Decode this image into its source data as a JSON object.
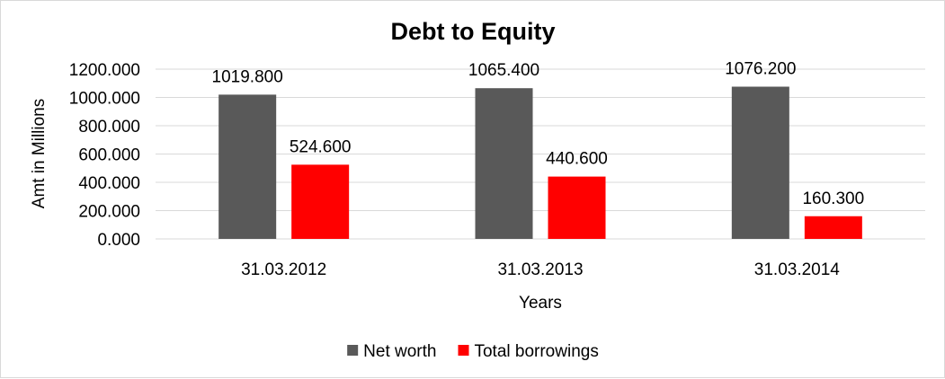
{
  "chart_data": {
    "type": "bar",
    "title": "Debt to Equity",
    "xlabel": "Years",
    "ylabel": "Amt in Millions",
    "categories": [
      "31.03.2012",
      "31.03.2013",
      "31.03.2014"
    ],
    "series": [
      {
        "name": "Net worth",
        "values": [
          1019.8,
          1065.4,
          1076.2
        ],
        "color": "#595959"
      },
      {
        "name": "Total borrowings",
        "values": [
          524.6,
          440.6,
          160.3
        ],
        "color": "#ff0000"
      }
    ],
    "ylim": [
      0,
      1200
    ],
    "yticks": [
      0,
      200,
      400,
      600,
      800,
      1000,
      1200
    ],
    "value_format_decimals": 3,
    "grid": true,
    "legend_position": "bottom"
  }
}
